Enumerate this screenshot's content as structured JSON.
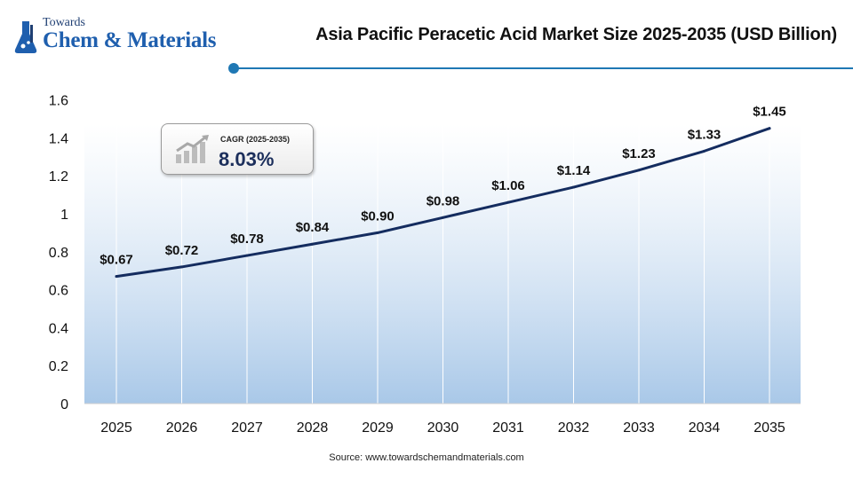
{
  "logo": {
    "line1": "Towards",
    "line2": "Chem & Materials"
  },
  "title": "Asia Pacific Peracetic Acid Market Size 2025-2035 (USD Billion)",
  "cagr": {
    "label": "CAGR (2025-2035)",
    "value": "8.03%"
  },
  "source": "Source: www.towardschemandmaterials.com",
  "colors": {
    "line": "#142c5f",
    "accent": "#1f78b4",
    "area_top": "#ffffff",
    "area_bottom": "#a9c8e8"
  },
  "chart_data": {
    "type": "area",
    "title": "Asia Pacific Peracetic Acid Market Size 2025-2035 (USD Billion)",
    "categories": [
      "2025",
      "2026",
      "2027",
      "2028",
      "2029",
      "2030",
      "2031",
      "2032",
      "2033",
      "2034",
      "2035"
    ],
    "values": [
      0.67,
      0.72,
      0.78,
      0.84,
      0.9,
      0.98,
      1.06,
      1.14,
      1.23,
      1.33,
      1.45
    ],
    "data_labels": [
      "$0.67",
      "$0.72",
      "$0.78",
      "$0.84",
      "$0.90",
      "$0.98",
      "$1.06",
      "$1.14",
      "$1.23",
      "$1.33",
      "$1.45"
    ],
    "y_ticks": [
      "0",
      "0.2",
      "0.4",
      "0.6",
      "0.8",
      "1",
      "1.2",
      "1.4",
      "1.6"
    ],
    "ylim": [
      0,
      1.6
    ],
    "xlabel": "",
    "ylabel": "",
    "grid": "vertical lines at categories"
  }
}
